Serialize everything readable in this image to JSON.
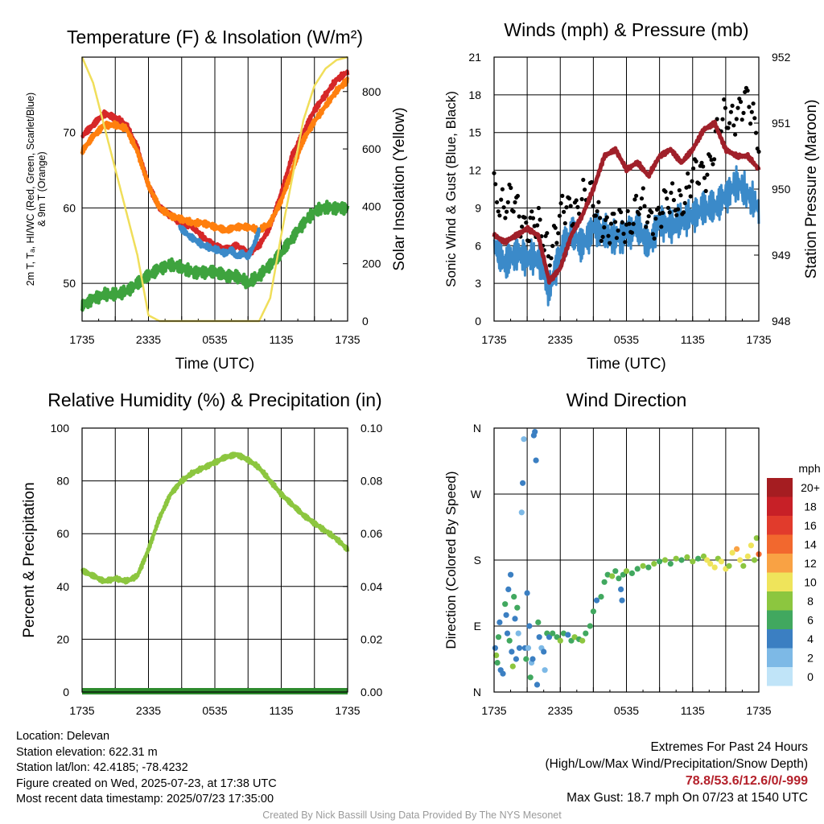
{
  "chart_data": [
    {
      "type": "line",
      "title": "Temperature (F) & Insolation (W/m²)",
      "xlabel": "Time (UTC)",
      "ylabel_lines": [
        "2m T, Tₐ, HI/WC (Red, Green, Scarlet/Blue)",
        "& 9m T (Orange)"
      ],
      "y2label": "Solar Insolation (Yellow)",
      "x_ticks": [
        "1735",
        "2335",
        "0535",
        "1135",
        "1735"
      ],
      "ylim": [
        45,
        80
      ],
      "y_ticks": [
        50,
        60,
        70
      ],
      "y2lim": [
        0,
        920
      ],
      "y2_ticks": [
        0,
        200,
        400,
        600,
        800
      ],
      "grid": true,
      "series": [
        {
          "color": "#d62728",
          "axis": "left",
          "x": [
            0,
            1,
            2,
            3,
            4,
            5,
            6,
            7,
            8,
            9,
            10,
            11,
            12,
            13,
            14,
            15,
            16,
            17,
            18,
            19,
            20,
            21,
            22,
            23,
            24
          ],
          "values": [
            69.5,
            71,
            72.5,
            72,
            71,
            68,
            63,
            60,
            59,
            58,
            57.5,
            56,
            55,
            54.5,
            55,
            54,
            55,
            57.5,
            62,
            67,
            70,
            73,
            75,
            77,
            78
          ]
        },
        {
          "color": "#ff7f0e",
          "axis": "left",
          "x": [
            0,
            1,
            2,
            3,
            4,
            5,
            6,
            7,
            8,
            9,
            10,
            11,
            12,
            13,
            14,
            15,
            16,
            17,
            18,
            19,
            20,
            21,
            22,
            23,
            24
          ],
          "values": [
            67.5,
            69.5,
            71,
            71,
            70.5,
            67.5,
            63,
            60,
            59,
            58.5,
            58,
            58,
            57.5,
            57,
            57.5,
            57.5,
            57,
            58,
            61,
            65,
            69,
            71.5,
            73.5,
            75.5,
            77
          ]
        },
        {
          "color": "#3b8ac9",
          "axis": "left",
          "x": [
            8.8,
            9.5,
            10,
            11,
            12,
            13,
            13.5,
            14,
            14.5,
            15,
            15.5,
            16
          ],
          "values": [
            57.5,
            56.5,
            56,
            55,
            54.5,
            54,
            54.5,
            53.5,
            54,
            53.5,
            55,
            57
          ]
        },
        {
          "color": "#3ea33e",
          "axis": "left",
          "x": [
            0,
            1,
            2,
            3,
            4,
            5,
            6,
            7,
            8,
            9,
            10,
            11,
            12,
            13,
            14,
            15,
            16,
            17,
            18,
            19,
            20,
            21,
            22,
            23,
            24
          ],
          "values": [
            47,
            48,
            48.5,
            48.5,
            49,
            50,
            51,
            52,
            52.5,
            52,
            51.5,
            51.5,
            51.5,
            51,
            51,
            50,
            51,
            52.5,
            54,
            56,
            58,
            59.5,
            60,
            60,
            60
          ]
        },
        {
          "color": "#f0de5a",
          "axis": "right",
          "x": [
            0,
            1,
            2,
            3,
            4,
            5,
            6,
            7,
            8,
            9,
            10,
            11,
            12,
            13,
            14,
            15,
            16,
            17,
            18,
            19,
            20,
            21,
            22,
            23,
            24
          ],
          "values": [
            920,
            830,
            680,
            530,
            380,
            230,
            20,
            0,
            0,
            0,
            0,
            0,
            0,
            0,
            0,
            0,
            0,
            80,
            300,
            500,
            700,
            820,
            880,
            910,
            920
          ]
        }
      ]
    },
    {
      "type": "line",
      "title": "Winds (mph) & Pressure (mb)",
      "xlabel": "Time (UTC)",
      "ylabel": "Sonic Wind & Gust (Blue, Black)",
      "y2label": "Station Pressure (Maroon)",
      "x_ticks": [
        "1735",
        "2335",
        "0535",
        "1135",
        "1735"
      ],
      "ylim": [
        0,
        21
      ],
      "y_ticks": [
        0,
        3,
        6,
        9,
        12,
        15,
        18,
        21
      ],
      "y2lim": [
        948,
        952
      ],
      "y2_ticks": [
        948,
        949,
        950,
        951,
        952
      ],
      "grid": true,
      "series": [
        {
          "color": "#3b8ac9",
          "axis": "left",
          "x": [
            0,
            1,
            2,
            3,
            4,
            5,
            6,
            7,
            8,
            9,
            10,
            11,
            12,
            13,
            14,
            15,
            16,
            17,
            18,
            19,
            20,
            21,
            22,
            23,
            24
          ],
          "values": [
            6,
            4.5,
            5.5,
            5,
            5,
            2.5,
            5.5,
            7,
            6,
            7.5,
            7,
            6.5,
            7,
            7.5,
            6,
            8,
            7.5,
            8,
            8.5,
            9,
            9,
            10,
            11,
            10,
            9
          ]
        },
        {
          "color": "#000000",
          "axis": "left",
          "style": "points",
          "x": [
            0,
            1,
            2,
            3,
            4,
            5,
            6,
            7,
            8,
            9,
            10,
            11,
            12,
            13,
            14,
            15,
            16,
            17,
            18,
            19,
            20,
            21,
            22,
            23,
            24
          ],
          "values": [
            11,
            9,
            9,
            8,
            7,
            6,
            8,
            9,
            10,
            9,
            8,
            7,
            8,
            9,
            8,
            9,
            9,
            10,
            11,
            12,
            14,
            16,
            17,
            17,
            15
          ]
        },
        {
          "color": "#a0202a",
          "axis": "right",
          "x": [
            0,
            1,
            2,
            3,
            4,
            5,
            6,
            7,
            8,
            9,
            10,
            11,
            12,
            13,
            14,
            15,
            16,
            17,
            18,
            19,
            20,
            21,
            22,
            23,
            24
          ],
          "values": [
            949.3,
            949.2,
            949.3,
            949.4,
            949.3,
            948.6,
            948.8,
            949.3,
            949.6,
            950.0,
            950.5,
            950.6,
            950.3,
            950.4,
            950.2,
            950.5,
            950.6,
            950.4,
            950.6,
            950.9,
            951.0,
            950.6,
            950.5,
            950.5,
            950.3
          ]
        }
      ]
    },
    {
      "type": "line",
      "title": "Relative Humidity (%) & Precipitation (in)",
      "ylabel": "Percent & Precipitation",
      "x_ticks": [
        "1735",
        "2335",
        "0535",
        "1135",
        "1735"
      ],
      "ylim": [
        0,
        100
      ],
      "y_ticks": [
        0,
        20,
        40,
        60,
        80,
        100
      ],
      "y2lim": [
        0,
        0.1
      ],
      "y2_ticks": [
        "0.00",
        "0.02",
        "0.04",
        "0.06",
        "0.08",
        "0.10"
      ],
      "grid": true,
      "series": [
        {
          "color": "#8cc63f",
          "axis": "left",
          "x": [
            0,
            1,
            2,
            3,
            4,
            5,
            6,
            7,
            8,
            9,
            10,
            11,
            12,
            13,
            14,
            15,
            16,
            17,
            18,
            19,
            20,
            21,
            22,
            23,
            24
          ],
          "values": [
            46,
            44,
            42,
            43,
            42,
            44,
            54,
            66,
            75,
            80,
            83,
            85,
            87,
            89,
            90,
            88,
            85,
            80,
            75,
            71,
            67,
            64,
            61,
            58,
            54
          ]
        },
        {
          "color": "#2e8b2e",
          "axis": "right",
          "x": [
            0,
            24
          ],
          "values": [
            0,
            0
          ]
        }
      ]
    },
    {
      "type": "scatter",
      "title": "Wind Direction",
      "ylabel": "Direction (Colored By Speed)",
      "x_ticks": [
        "1735",
        "2335",
        "0535",
        "1135",
        "1735"
      ],
      "ylim": [
        0,
        360
      ],
      "y_tick_labels": [
        "N",
        "E",
        "S",
        "W",
        "N"
      ],
      "y_tick_values": [
        0,
        90,
        180,
        270,
        360
      ],
      "grid": true,
      "colorbar": {
        "unit": "mph",
        "labels": [
          "20+",
          "18",
          "16",
          "14",
          "12",
          "10",
          "8",
          "6",
          "4",
          "2",
          "0"
        ],
        "colors": [
          "#a51d21",
          "#c72027",
          "#e13b2c",
          "#f2682e",
          "#f9a244",
          "#efe45b",
          "#8cc63f",
          "#41a85f",
          "#3b7fc2",
          "#7db9e6",
          "#c0e4f8"
        ]
      },
      "points": [
        {
          "x": 0.1,
          "dir": 60,
          "speed": 4
        },
        {
          "x": 0.2,
          "dir": 50,
          "speed": 8
        },
        {
          "x": 0.3,
          "dir": 40,
          "speed": 6
        },
        {
          "x": 0.4,
          "dir": 75,
          "speed": 6
        },
        {
          "x": 0.5,
          "dir": 95,
          "speed": 4
        },
        {
          "x": 0.6,
          "dir": 30,
          "speed": 4
        },
        {
          "x": 0.8,
          "dir": 25,
          "speed": 4
        },
        {
          "x": 1.0,
          "dir": 120,
          "speed": 6
        },
        {
          "x": 1.1,
          "dir": 105,
          "speed": 4
        },
        {
          "x": 1.2,
          "dir": 80,
          "speed": 4
        },
        {
          "x": 1.3,
          "dir": 140,
          "speed": 4
        },
        {
          "x": 1.4,
          "dir": 70,
          "speed": 6
        },
        {
          "x": 1.5,
          "dir": 160,
          "speed": 4
        },
        {
          "x": 1.6,
          "dir": 55,
          "speed": 4
        },
        {
          "x": 1.7,
          "dir": 35,
          "speed": 8
        },
        {
          "x": 1.8,
          "dir": 130,
          "speed": 6
        },
        {
          "x": 1.9,
          "dir": 100,
          "speed": 4
        },
        {
          "x": 2.0,
          "dir": 45,
          "speed": 4
        },
        {
          "x": 2.1,
          "dir": 115,
          "speed": 6
        },
        {
          "x": 2.2,
          "dir": 80,
          "speed": 2
        },
        {
          "x": 2.3,
          "dir": 60,
          "speed": 4
        },
        {
          "x": 2.5,
          "dir": 245,
          "speed": 2
        },
        {
          "x": 2.6,
          "dir": 285,
          "speed": 4
        },
        {
          "x": 2.7,
          "dir": 345,
          "speed": 2
        },
        {
          "x": 2.8,
          "dir": 60,
          "speed": 4
        },
        {
          "x": 2.9,
          "dir": 45,
          "speed": 6
        },
        {
          "x": 3.0,
          "dir": 135,
          "speed": 4
        },
        {
          "x": 3.1,
          "dir": 60,
          "speed": 2
        },
        {
          "x": 3.2,
          "dir": 90,
          "speed": 4
        },
        {
          "x": 3.3,
          "dir": 20,
          "speed": 6
        },
        {
          "x": 3.4,
          "dir": 40,
          "speed": 2
        },
        {
          "x": 3.5,
          "dir": 45,
          "speed": 4
        },
        {
          "x": 3.6,
          "dir": 350,
          "speed": 4
        },
        {
          "x": 3.7,
          "dir": 355,
          "speed": 4
        },
        {
          "x": 3.8,
          "dir": 316,
          "speed": 4
        },
        {
          "x": 3.9,
          "dir": 10,
          "speed": 4
        },
        {
          "x": 4.0,
          "dir": 95,
          "speed": 6
        },
        {
          "x": 4.1,
          "dir": 75,
          "speed": 4
        },
        {
          "x": 4.3,
          "dir": 60,
          "speed": 2
        },
        {
          "x": 4.5,
          "dir": 55,
          "speed": 4
        },
        {
          "x": 4.6,
          "dir": 30,
          "speed": 2
        },
        {
          "x": 4.8,
          "dir": 80,
          "speed": 6
        },
        {
          "x": 5.0,
          "dir": 75,
          "speed": 4
        },
        {
          "x": 5.3,
          "dir": 80,
          "speed": 6
        },
        {
          "x": 5.7,
          "dir": 75,
          "speed": 6
        },
        {
          "x": 6.0,
          "dir": 70,
          "speed": 8
        },
        {
          "x": 6.3,
          "dir": 80,
          "speed": 6
        },
        {
          "x": 6.7,
          "dir": 78,
          "speed": 4
        },
        {
          "x": 7.0,
          "dir": 70,
          "speed": 6
        },
        {
          "x": 7.3,
          "dir": 75,
          "speed": 8
        },
        {
          "x": 7.7,
          "dir": 72,
          "speed": 6
        },
        {
          "x": 8.0,
          "dir": 70,
          "speed": 8
        },
        {
          "x": 8.3,
          "dir": 80,
          "speed": 6
        },
        {
          "x": 8.7,
          "dir": 90,
          "speed": 6
        },
        {
          "x": 9.0,
          "dir": 110,
          "speed": 6
        },
        {
          "x": 9.3,
          "dir": 125,
          "speed": 4
        },
        {
          "x": 9.7,
          "dir": 130,
          "speed": 6
        },
        {
          "x": 10.0,
          "dir": 150,
          "speed": 6
        },
        {
          "x": 10.3,
          "dir": 160,
          "speed": 6
        },
        {
          "x": 10.7,
          "dir": 158,
          "speed": 8
        },
        {
          "x": 11.0,
          "dir": 165,
          "speed": 6
        },
        {
          "x": 11.3,
          "dir": 155,
          "speed": 6
        },
        {
          "x": 11.5,
          "dir": 140,
          "speed": 4
        },
        {
          "x": 11.6,
          "dir": 125,
          "speed": 4
        },
        {
          "x": 11.7,
          "dir": 160,
          "speed": 6
        },
        {
          "x": 12.0,
          "dir": 165,
          "speed": 8
        },
        {
          "x": 12.5,
          "dir": 162,
          "speed": 6
        },
        {
          "x": 13.0,
          "dir": 168,
          "speed": 6
        },
        {
          "x": 13.5,
          "dir": 172,
          "speed": 8
        },
        {
          "x": 14.0,
          "dir": 170,
          "speed": 6
        },
        {
          "x": 14.5,
          "dir": 175,
          "speed": 8
        },
        {
          "x": 15.0,
          "dir": 178,
          "speed": 6
        },
        {
          "x": 15.5,
          "dir": 180,
          "speed": 8
        },
        {
          "x": 16.0,
          "dir": 175,
          "speed": 6
        },
        {
          "x": 16.5,
          "dir": 182,
          "speed": 8
        },
        {
          "x": 17.0,
          "dir": 180,
          "speed": 6
        },
        {
          "x": 17.5,
          "dir": 184,
          "speed": 8
        },
        {
          "x": 18.0,
          "dir": 178,
          "speed": 8
        },
        {
          "x": 18.5,
          "dir": 182,
          "speed": 6
        },
        {
          "x": 19.0,
          "dir": 185,
          "speed": 8
        },
        {
          "x": 19.3,
          "dir": 180,
          "speed": 10
        },
        {
          "x": 19.6,
          "dir": 175,
          "speed": 10
        },
        {
          "x": 20.0,
          "dir": 170,
          "speed": 10
        },
        {
          "x": 20.3,
          "dir": 182,
          "speed": 8
        },
        {
          "x": 20.6,
          "dir": 178,
          "speed": 10
        },
        {
          "x": 21.0,
          "dir": 168,
          "speed": 10
        },
        {
          "x": 21.3,
          "dir": 172,
          "speed": 8
        },
        {
          "x": 21.6,
          "dir": 190,
          "speed": 10
        },
        {
          "x": 22.0,
          "dir": 195,
          "speed": 12
        },
        {
          "x": 22.3,
          "dir": 180,
          "speed": 10
        },
        {
          "x": 22.6,
          "dir": 172,
          "speed": 8
        },
        {
          "x": 23.0,
          "dir": 185,
          "speed": 10
        },
        {
          "x": 23.3,
          "dir": 200,
          "speed": 10
        },
        {
          "x": 23.6,
          "dir": 180,
          "speed": 8
        },
        {
          "x": 23.8,
          "dir": 210,
          "speed": 8
        },
        {
          "x": 24.0,
          "dir": 188,
          "speed": 14
        }
      ]
    }
  ],
  "station": {
    "location": "Location: Delevan",
    "elevation": "Station elevation: 622.31 m",
    "latlon": "Station lat/lon: 42.4185; -78.4232",
    "created": "Figure created on Wed, 2025-07-23, at 17:38 UTC",
    "recent": "Most recent data timestamp: 2025/07/23 17:35:00"
  },
  "extremes": {
    "heading": "Extremes For Past 24 Hours",
    "subheading": "(High/Low/Max Wind/Precipitation/Snow Depth)",
    "values": "78.8/53.6/12.6/0/-999",
    "gust": "Max Gust: 18.7 mph On 07/23 at 1540 UTC"
  },
  "credit": "Created By Nick Bassill Using Data Provided By The NYS Mesonet"
}
